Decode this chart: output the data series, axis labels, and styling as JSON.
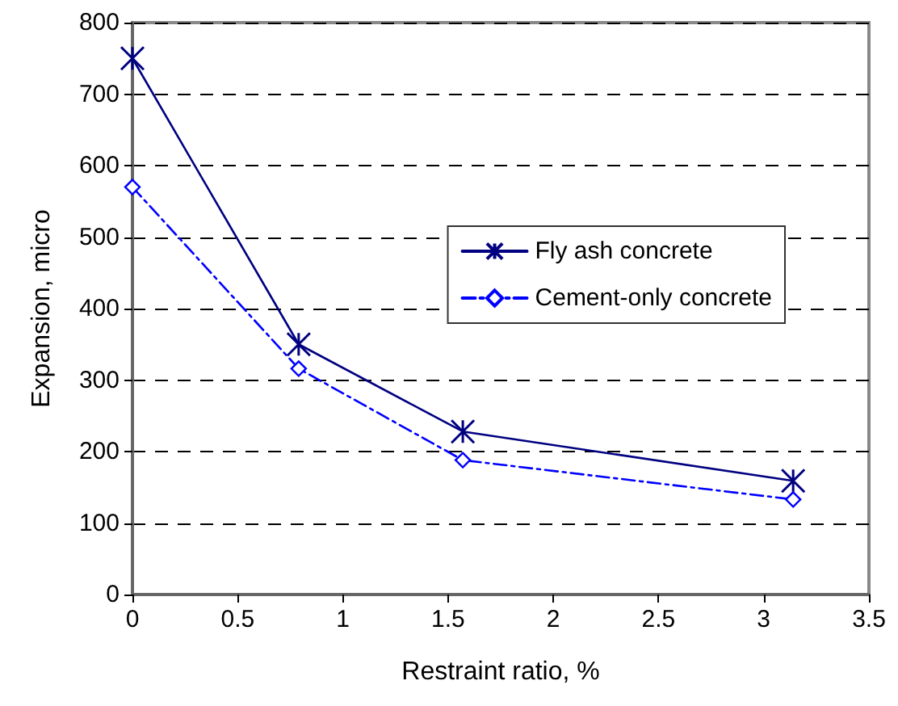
{
  "chart_data": {
    "type": "line",
    "xlabel": "Restraint ratio, %",
    "ylabel": "Expansion, micro",
    "xlim": [
      0,
      3.5
    ],
    "xticks": [
      0,
      0.5,
      1,
      1.5,
      2,
      2.5,
      3,
      3.5
    ],
    "ylim": [
      0,
      800
    ],
    "yticks": [
      0,
      100,
      200,
      300,
      400,
      500,
      600,
      700,
      800
    ],
    "grid": "y",
    "legend": "right",
    "series": [
      {
        "name": "Fly ash concrete",
        "color": "#000080",
        "x": [
          0,
          0.79,
          1.57,
          3.14
        ],
        "values": [
          750,
          350,
          228,
          159
        ],
        "marker": "cross",
        "line_style": "solid"
      },
      {
        "name": "Cement-only concrete",
        "color": "#0000ff",
        "x": [
          0,
          0.79,
          1.57,
          3.14
        ],
        "values": [
          570,
          316,
          188,
          133
        ],
        "marker": "diamond",
        "line_style": "dashed"
      }
    ]
  }
}
